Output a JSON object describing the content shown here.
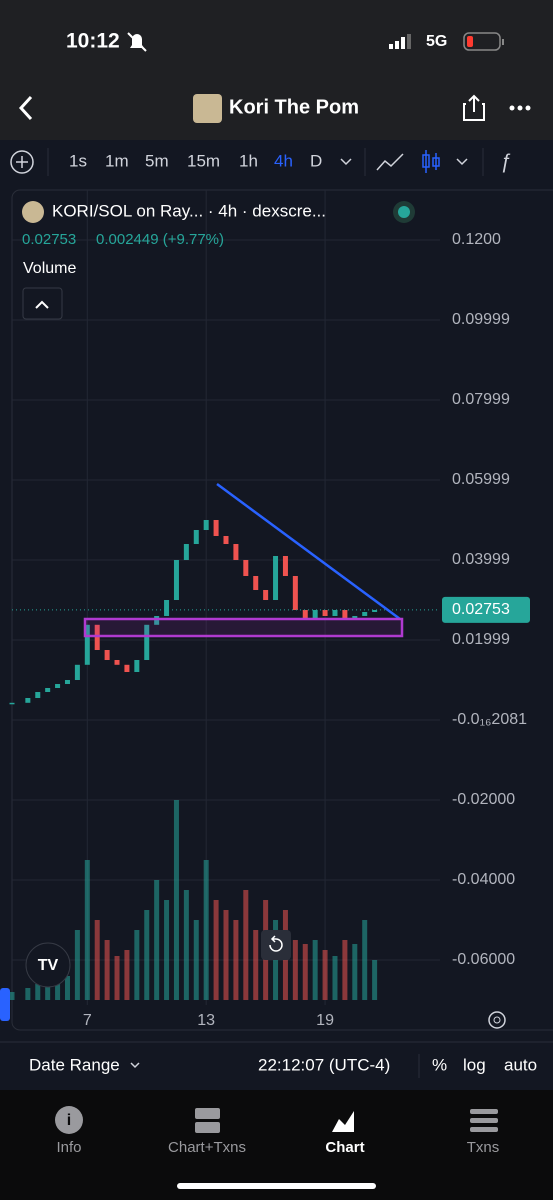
{
  "status_bar": {
    "time": "10:12",
    "network": "5G"
  },
  "header": {
    "title": "Kori The Pom"
  },
  "toolbar": {
    "timeframes": [
      "1s",
      "1m",
      "5m",
      "15m",
      "1h",
      "4h",
      "D"
    ]
  },
  "chart": {
    "legend": "KORI/SOL on Ray... · 4h · dexscre...",
    "last_price": 0.02753,
    "change": "0.002449 (+9.77%)",
    "volume_label": "Volume",
    "up_color": "#26a69a",
    "down_color": "#ef5350",
    "xlim": [
      3.2,
      24.8
    ],
    "xticks": [
      7,
      13,
      19
    ],
    "ylim": [
      -0.07,
      0.13
    ],
    "yticks": [
      {
        "value": 0.12,
        "label": "0.1200"
      },
      {
        "value": 0.1,
        "label": "0.09999"
      },
      {
        "value": 0.08,
        "label": "0.07999"
      },
      {
        "value": 0.06,
        "label": "0.05999"
      },
      {
        "value": 0.04,
        "label": "0.03999"
      },
      {
        "value": 0.02,
        "label": "0.01999"
      },
      {
        "value": 0,
        "label": "-0.0₁₆2081"
      },
      {
        "value": -0.02,
        "label": "-0.02000"
      },
      {
        "value": -0.04,
        "label": "-0.04000"
      },
      {
        "value": -0.06,
        "label": "-0.06000"
      }
    ],
    "x": [
      3.2,
      4,
      4.5,
      5,
      5.5,
      6,
      6.5,
      7,
      7.5,
      8,
      8.5,
      9,
      9.5,
      10,
      10.5,
      11,
      11.5,
      12,
      12.5,
      13,
      13.5,
      14,
      14.5,
      15,
      15.5,
      16,
      16.5,
      17,
      17.5,
      18,
      18.5,
      19,
      19.5,
      20,
      20.5,
      21,
      21.5
    ],
    "close": [
      0.0043,
      0.0055,
      0.007,
      0.008,
      0.009,
      0.01,
      0.0138,
      0.0238,
      0.0175,
      0.015,
      0.0138,
      0.012,
      0.015,
      0.0238,
      0.026,
      0.03,
      0.04,
      0.044,
      0.0475,
      0.05,
      0.046,
      0.044,
      0.04,
      0.036,
      0.0325,
      0.03,
      0.041,
      0.036,
      0.0275,
      0.025,
      0.0275,
      0.026,
      0.0275,
      0.025,
      0.026,
      0.027,
      0.0275
    ],
    "volume": [
      4,
      6,
      8,
      10,
      8,
      12,
      35,
      70,
      40,
      30,
      22,
      25,
      35,
      45,
      60,
      50,
      100,
      55,
      40,
      70,
      50,
      45,
      40,
      55,
      35,
      50,
      40,
      45,
      30,
      28,
      30,
      25,
      22,
      30,
      28,
      40,
      20
    ]
  },
  "chart_footer": {
    "date_range": "Date Range",
    "clock": "22:12:07 (UTC-4)",
    "percent": "%",
    "log": "log",
    "auto": "auto"
  },
  "tabs": [
    "Info",
    "Chart+Txns",
    "Chart",
    "Txns"
  ]
}
